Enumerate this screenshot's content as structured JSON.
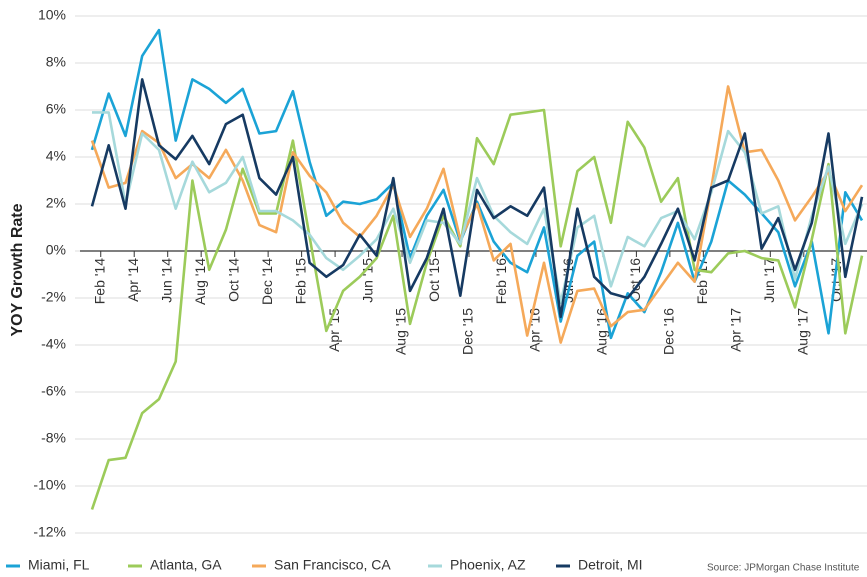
{
  "chart_data": {
    "type": "line",
    "y_label": "YOY Growth Rate",
    "source": "Source:  JPMorgan Chase Institute",
    "categories": [
      null,
      "Feb '14",
      null,
      "Apr '14",
      null,
      "Jun '14",
      null,
      "Aug '14",
      null,
      "Oct '14",
      null,
      "Dec '14",
      null,
      "Feb '15",
      null,
      "Apr '15",
      null,
      "Jun '15",
      null,
      "Aug '15",
      null,
      "Oct '15",
      null,
      "Dec '15",
      null,
      "Feb '16",
      null,
      "Apr '16",
      null,
      "Jun '16",
      null,
      "Aug '16",
      null,
      "Oct '16",
      null,
      "Dec '16",
      null,
      "Feb '17",
      null,
      "Apr '17",
      null,
      "Jun '17",
      null,
      "Aug '17",
      null,
      "Oct '17",
      null
    ],
    "series": [
      {
        "name": "Miami, FL",
        "color": "#1ba3d6",
        "values": [
          4.3,
          6.7,
          4.9,
          8.3,
          9.4,
          4.7,
          7.3,
          6.9,
          6.3,
          6.9,
          5.0,
          5.1,
          6.8,
          3.8,
          1.5,
          2.1,
          2.0,
          2.2,
          2.9,
          -0.3,
          1.5,
          2.6,
          0.4,
          2.1,
          0.4,
          -0.5,
          -0.9,
          1.0,
          -3.0,
          -0.2,
          0.4,
          -3.7,
          -1.8,
          -2.6,
          -0.9,
          1.2,
          -1.3,
          0.4,
          3.0,
          2.4,
          1.6,
          0.8,
          -1.5,
          0.4,
          -3.5,
          2.5,
          1.3
        ]
      },
      {
        "name": "Atlanta, GA",
        "color": "#9ccb5a",
        "values": [
          -11.0,
          -8.9,
          -8.8,
          -6.9,
          -6.3,
          -4.7,
          3.0,
          -0.8,
          0.9,
          3.5,
          1.6,
          1.6,
          4.7,
          0.6,
          -3.4,
          -1.7,
          -1.1,
          -0.3,
          1.5,
          -3.1,
          -0.5,
          1.5,
          0.2,
          4.8,
          3.7,
          5.8,
          5.9,
          6.0,
          0.2,
          3.4,
          4.0,
          1.2,
          5.5,
          4.4,
          2.1,
          3.1,
          -0.8,
          -0.9,
          -0.1,
          0.0,
          -0.3,
          -0.4,
          -2.4,
          0.5,
          3.7,
          -3.5,
          -0.2
        ]
      },
      {
        "name": "San Francisco, CA",
        "color": "#f5a95a",
        "values": [
          4.7,
          2.7,
          2.9,
          5.1,
          4.6,
          3.1,
          3.7,
          3.1,
          4.3,
          3.0,
          1.1,
          0.8,
          4.2,
          3.2,
          2.5,
          1.2,
          0.6,
          1.5,
          2.8,
          0.6,
          1.8,
          3.5,
          0.5,
          2.0,
          -0.4,
          0.3,
          -3.6,
          -0.5,
          -3.9,
          -1.7,
          -1.6,
          -3.2,
          -2.6,
          -2.5,
          -1.5,
          -0.5,
          -1.3,
          2.7,
          7.0,
          4.2,
          4.3,
          3.0,
          1.3,
          2.3,
          3.4,
          1.7,
          2.8
        ]
      },
      {
        "name": "Phoenix, AZ",
        "color": "#a6d9db",
        "values": [
          5.9,
          5.9,
          2.0,
          5.0,
          4.3,
          1.8,
          3.8,
          2.5,
          2.9,
          4.0,
          1.7,
          1.7,
          1.3,
          0.7,
          -0.3,
          -0.8,
          -0.2,
          0.5,
          1.8,
          -0.5,
          1.3,
          1.2,
          0.3,
          3.1,
          1.5,
          0.8,
          0.3,
          1.8,
          -2.2,
          1.0,
          1.5,
          -1.5,
          0.6,
          0.2,
          1.4,
          1.7,
          0.5,
          2.5,
          5.1,
          4.2,
          1.6,
          1.9,
          -1.2,
          1.5,
          3.6,
          0.3,
          2.0
        ]
      },
      {
        "name": "Detroit, MI",
        "color": "#163a62",
        "values": [
          1.9,
          4.5,
          1.8,
          7.3,
          4.5,
          3.9,
          4.9,
          3.7,
          5.4,
          5.8,
          3.1,
          2.4,
          4.0,
          -0.5,
          -1.1,
          -0.6,
          0.7,
          -0.2,
          3.1,
          -1.7,
          -0.3,
          1.8,
          -1.9,
          2.6,
          1.4,
          1.9,
          1.5,
          2.7,
          -2.8,
          1.8,
          -1.1,
          -1.8,
          -2.0,
          -1.1,
          0.3,
          1.8,
          -0.4,
          2.7,
          3.0,
          5.0,
          0.1,
          1.4,
          -0.8,
          1.2,
          5.0,
          -1.1,
          2.3
        ]
      }
    ],
    "ylim": [
      -12,
      10
    ],
    "yticks": [
      {
        "value": -12,
        "label": "-12%"
      },
      {
        "value": -10,
        "label": "-10%"
      },
      {
        "value": -8,
        "label": "-8%"
      },
      {
        "value": -6,
        "label": "-6%"
      },
      {
        "value": -4,
        "label": "-4%"
      },
      {
        "value": -2,
        "label": "-2%"
      },
      {
        "value": 0,
        "label": "0%"
      },
      {
        "value": 2,
        "label": "2%"
      },
      {
        "value": 4,
        "label": "4%"
      },
      {
        "value": 6,
        "label": "6%"
      },
      {
        "value": 8,
        "label": "8%"
      },
      {
        "value": 10,
        "label": "10%"
      }
    ],
    "grid": true
  }
}
